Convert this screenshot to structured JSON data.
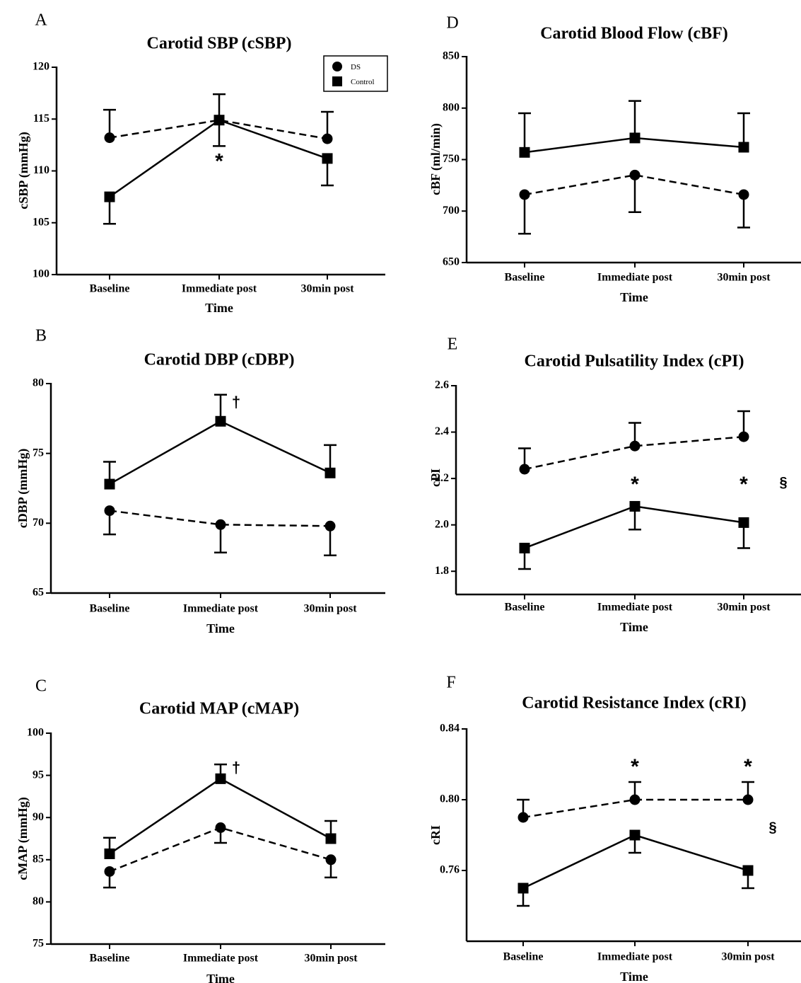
{
  "legend": {
    "items": [
      {
        "label": "DS",
        "marker": "circle",
        "line": "dashed"
      },
      {
        "label": "Control",
        "marker": "square",
        "line": "solid"
      }
    ]
  },
  "chart_data": [
    {
      "panel": "A",
      "type": "line",
      "title": "Carotid SBP (cSBP)",
      "xlabel": "Time",
      "ylabel": "cSBP (mmHg)",
      "categories": [
        "Baseline",
        "Immediate post",
        "30min post"
      ],
      "ylim": [
        100,
        120
      ],
      "yticks": [
        100,
        105,
        110,
        115,
        120
      ],
      "series": [
        {
          "name": "DS",
          "marker": "circle",
          "line": "dashed",
          "values": [
            113.2,
            114.9,
            113.1
          ],
          "err_up": [
            2.7,
            2.5,
            2.6
          ],
          "err_down": [
            0,
            0,
            0
          ]
        },
        {
          "name": "Control",
          "marker": "square",
          "line": "solid",
          "values": [
            107.5,
            114.9,
            111.2
          ],
          "err_up": [
            0,
            0,
            0
          ],
          "err_down": [
            2.6,
            2.5,
            2.6
          ]
        }
      ],
      "annotations": [
        {
          "text": "*",
          "category": "Immediate post",
          "y": 110.8
        }
      ],
      "legend": "top-right"
    },
    {
      "panel": "B",
      "type": "line",
      "title": "Carotid DBP (cDBP)",
      "xlabel": "Time",
      "ylabel": "cDBP (mmHg)",
      "categories": [
        "Baseline",
        "Immediate post",
        "30min post"
      ],
      "ylim": [
        65,
        80
      ],
      "yticks": [
        65,
        70,
        75,
        80
      ],
      "series": [
        {
          "name": "DS",
          "marker": "circle",
          "line": "dashed",
          "values": [
            70.9,
            69.9,
            69.8
          ],
          "err_up": [
            0,
            0,
            0
          ],
          "err_down": [
            1.7,
            2.0,
            2.1
          ]
        },
        {
          "name": "Control",
          "marker": "square",
          "line": "solid",
          "values": [
            72.8,
            77.3,
            73.6
          ],
          "err_up": [
            1.6,
            1.9,
            2.0
          ],
          "err_down": [
            0,
            0,
            0
          ]
        }
      ],
      "annotations": [
        {
          "text": "†",
          "category": "Immediate post",
          "y": 78.6
        }
      ]
    },
    {
      "panel": "C",
      "type": "line",
      "title": "Carotid MAP (cMAP)",
      "xlabel": "Time",
      "ylabel": "cMAP (mmHg)",
      "categories": [
        "Baseline",
        "Immediate post",
        "30min post"
      ],
      "ylim": [
        75,
        100
      ],
      "yticks": [
        75,
        80,
        85,
        90,
        95,
        100
      ],
      "series": [
        {
          "name": "DS",
          "marker": "circle",
          "line": "dashed",
          "values": [
            83.6,
            88.8,
            85.0
          ],
          "err_up": [
            0,
            0,
            0
          ],
          "err_down": [
            1.9,
            1.8,
            2.1
          ]
        },
        {
          "name": "Control",
          "marker": "square",
          "line": "solid",
          "values": [
            85.7,
            94.6,
            87.5
          ],
          "err_up": [
            1.9,
            1.7,
            2.1
          ],
          "err_down": [
            0,
            0,
            0
          ]
        }
      ],
      "annotations": [
        {
          "text": "†",
          "category": "Immediate post",
          "y": 95.8
        }
      ]
    },
    {
      "panel": "D",
      "type": "line",
      "title": "Carotid Blood Flow (cBF)",
      "xlabel": "Time",
      "ylabel": "cBF (ml/min)",
      "categories": [
        "Baseline",
        "Immediate post",
        "30min post"
      ],
      "ylim": [
        650,
        850
      ],
      "yticks": [
        650,
        700,
        750,
        800,
        850
      ],
      "series": [
        {
          "name": "DS",
          "marker": "circle",
          "line": "dashed",
          "values": [
            716,
            735,
            716
          ],
          "err_up": [
            0,
            0,
            0
          ],
          "err_down": [
            38,
            36,
            32
          ]
        },
        {
          "name": "Control",
          "marker": "square",
          "line": "solid",
          "values": [
            757,
            771,
            762
          ],
          "err_up": [
            38,
            36,
            33
          ],
          "err_down": [
            0,
            0,
            0
          ]
        }
      ],
      "annotations": []
    },
    {
      "panel": "E",
      "type": "line",
      "title": "Carotid Pulsatility Index (cPI)",
      "xlabel": "Time",
      "ylabel": "cPI",
      "categories": [
        "Baseline",
        "Immediate post",
        "30min post"
      ],
      "ylim": [
        1.7,
        2.6
      ],
      "yticks": [
        1.8,
        2.0,
        2.2,
        2.4,
        2.6
      ],
      "yticklabels": [
        "1.8",
        "2.0",
        "2.2",
        "2.4",
        "2.6"
      ],
      "series": [
        {
          "name": "DS",
          "marker": "circle",
          "line": "dashed",
          "values": [
            2.24,
            2.34,
            2.38
          ],
          "err_up": [
            0.09,
            0.1,
            0.11
          ],
          "err_down": [
            0,
            0,
            0
          ]
        },
        {
          "name": "Control",
          "marker": "square",
          "line": "solid",
          "values": [
            1.9,
            2.08,
            2.01
          ],
          "err_up": [
            0,
            0,
            0
          ],
          "err_down": [
            0.09,
            0.1,
            0.11
          ]
        }
      ],
      "annotations": [
        {
          "text": "*",
          "category": "Immediate post",
          "y": 2.17
        },
        {
          "text": "*",
          "category": "30min post",
          "y": 2.17
        },
        {
          "text": "§",
          "category": "right",
          "y": 2.18
        }
      ]
    },
    {
      "panel": "F",
      "type": "line",
      "title": "Carotid Resistance Index (cRI)",
      "xlabel": "Time",
      "ylabel": "cRI",
      "categories": [
        "Baseline",
        "Immediate post",
        "30min post"
      ],
      "ylim": [
        0.72,
        0.84
      ],
      "yticks": [
        0.76,
        0.8,
        0.84
      ],
      "yticklabels": [
        "0.76",
        "0.80",
        "0.84"
      ],
      "series": [
        {
          "name": "DS",
          "marker": "circle",
          "line": "dashed",
          "values": [
            0.79,
            0.8,
            0.8
          ],
          "err_up": [
            0.01,
            0.01,
            0.01
          ],
          "err_down": [
            0,
            0,
            0
          ]
        },
        {
          "name": "Control",
          "marker": "square",
          "line": "solid",
          "values": [
            0.75,
            0.78,
            0.76
          ],
          "err_up": [
            0,
            0,
            0
          ],
          "err_down": [
            0.01,
            0.01,
            0.01
          ]
        }
      ],
      "annotations": [
        {
          "text": "*",
          "category": "Immediate post",
          "y": 0.818
        },
        {
          "text": "*",
          "category": "30min post",
          "y": 0.818
        },
        {
          "text": "§",
          "category": "right",
          "y": 0.784
        }
      ]
    }
  ]
}
